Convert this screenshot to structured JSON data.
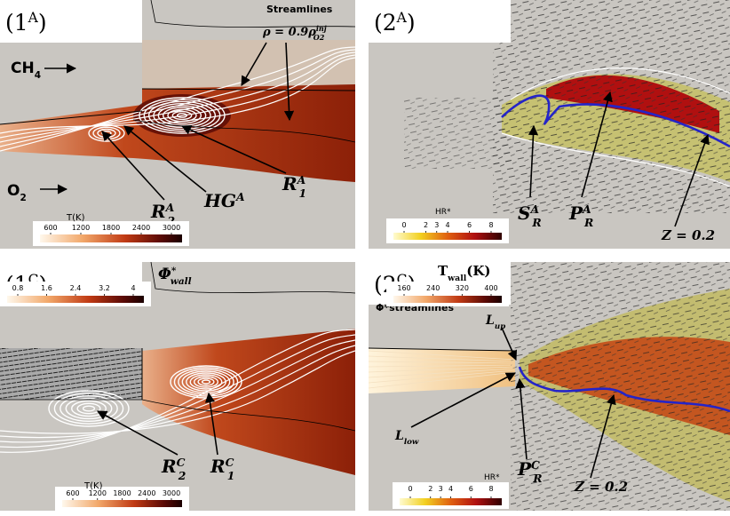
{
  "panels": [
    {
      "label": {
        "main": "(1",
        "sup": "A",
        "post": ")"
      },
      "colorbars": [
        {
          "label": "T(K)",
          "ticks": [
            600,
            1200,
            1800,
            2400,
            3000
          ]
        }
      ],
      "annotations": [
        "Streamlines",
        {
          "main": "ρ = 0.9ρ",
          "sup": "inj",
          "sub": "O2"
        },
        {
          "main": "CH",
          "sub": "4"
        },
        {
          "main": "O",
          "sub": "2"
        },
        {
          "main": "R",
          "sup": "A",
          "sub": "2"
        },
        {
          "main": "HG",
          "sup": "A"
        },
        {
          "main": "R",
          "sup": "A",
          "sub": "1"
        }
      ]
    },
    {
      "label": {
        "main": "(2",
        "sup": "A",
        "post": ")"
      },
      "colorbars": [
        {
          "label": "HR*",
          "ticks": [
            0,
            2,
            3,
            4,
            6,
            8
          ]
        }
      ],
      "annotations": [
        {
          "main": "S",
          "sup": "A",
          "sub": "R"
        },
        {
          "main": "P",
          "sup": "A",
          "sub": "R"
        },
        "Z = 0.2"
      ]
    },
    {
      "label": {
        "main": "(1",
        "sup": "C",
        "post": ")"
      },
      "colorbars": [
        {
          "label": {
            "main": "Φ",
            "sup": "*",
            "sub": "wall"
          },
          "ticks": [
            0.8,
            1.6,
            2.4,
            3.2,
            4
          ]
        },
        {
          "label": "T(K)",
          "ticks": [
            600,
            1200,
            1800,
            2400,
            3000
          ]
        }
      ],
      "annotations": [
        {
          "main": "R",
          "sup": "C",
          "sub": "2"
        },
        {
          "main": "R",
          "sup": "C",
          "sub": "1"
        }
      ]
    },
    {
      "label": {
        "main": "(2",
        "sup": "C",
        "post": ")"
      },
      "colorbars": [
        {
          "label": {
            "main": "T",
            "sub": "wall",
            "post": "(K)"
          },
          "ticks": [
            160,
            240,
            320,
            400
          ]
        },
        {
          "label": "HR*",
          "ticks": [
            0,
            2,
            3,
            4,
            6,
            8
          ]
        }
      ],
      "annotations": [
        "Φ*streamlines",
        {
          "main": "L",
          "sub": "up"
        },
        {
          "main": "L",
          "sub": "low"
        },
        {
          "main": "P",
          "sup": "C",
          "sub": "R"
        },
        "Z = 0.2"
      ]
    }
  ]
}
